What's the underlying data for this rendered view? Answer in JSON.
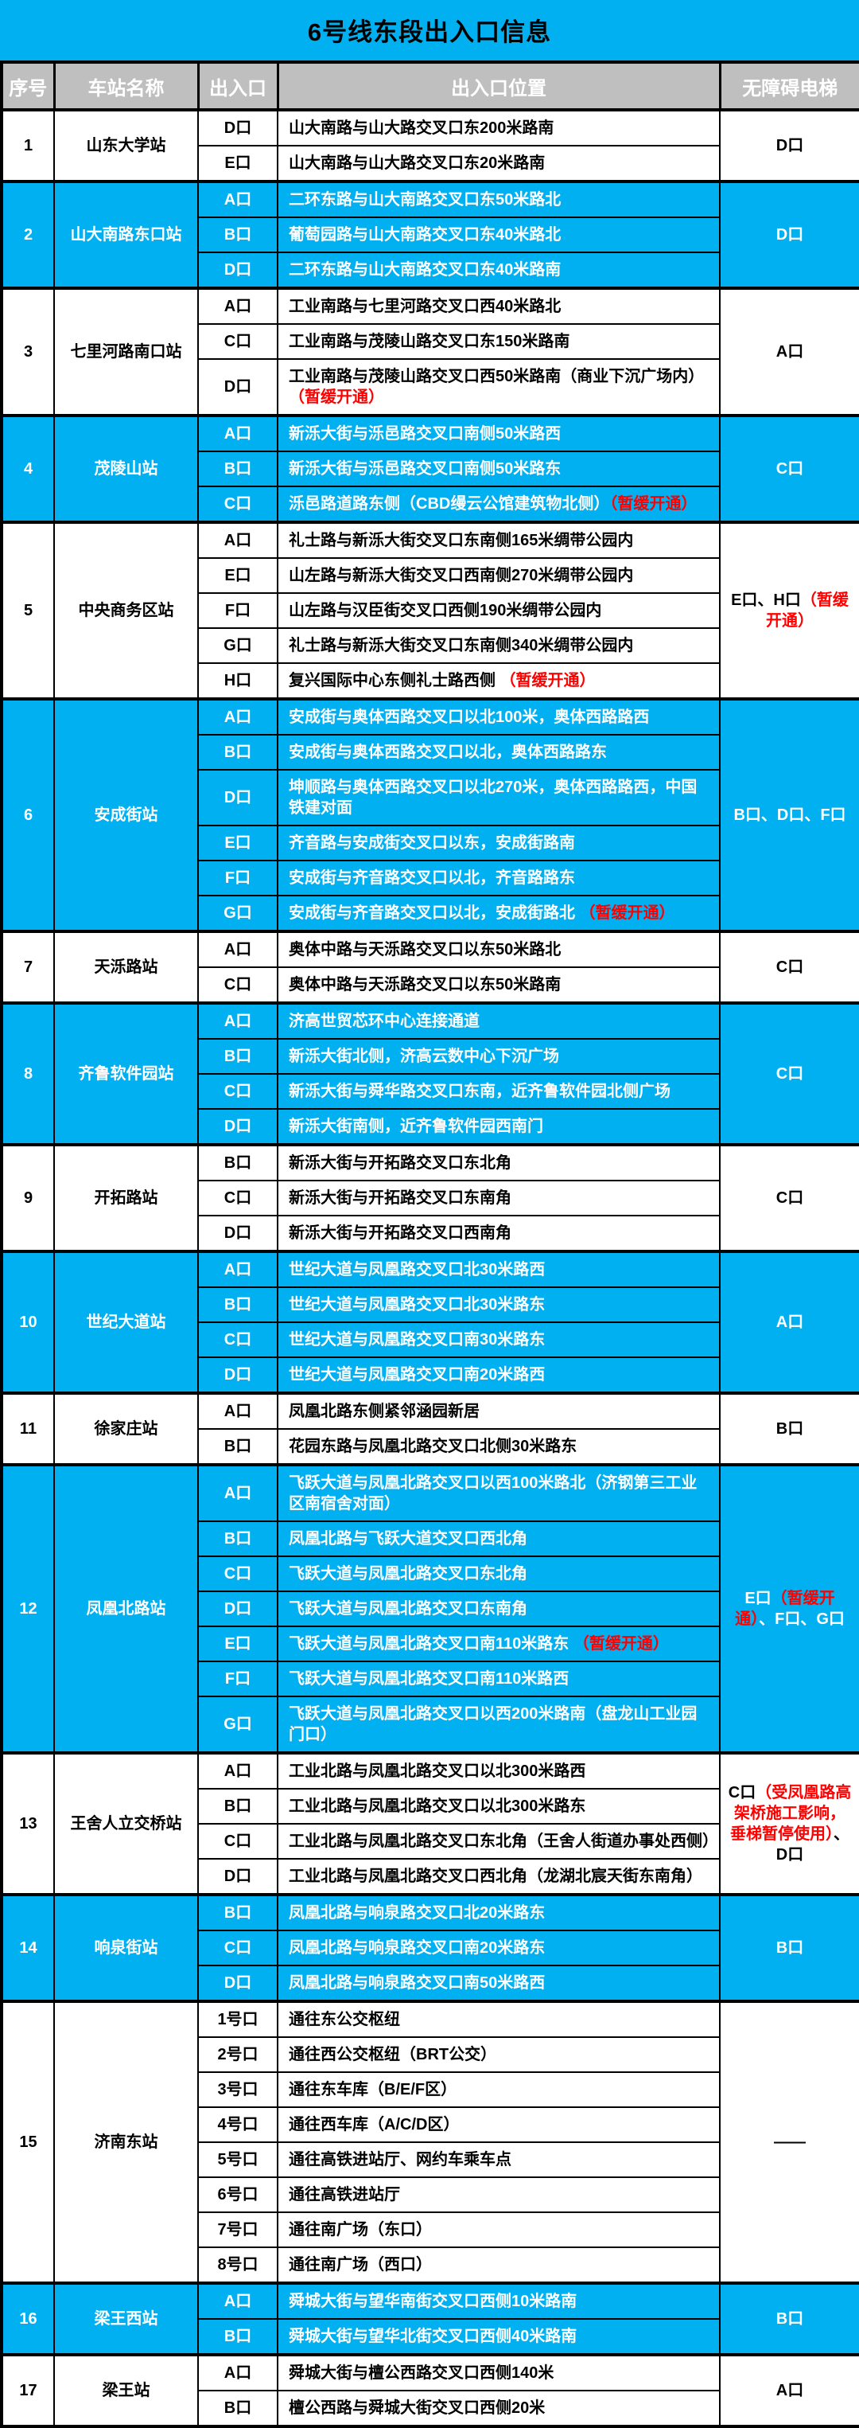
{
  "title": "6号线东段出入口信息",
  "headers": [
    "序号",
    "车站名称",
    "出入口",
    "出入口位置",
    "无障碍电梯"
  ],
  "colors": {
    "accent_cyan": "#00B0F0",
    "header_gray": "#BFBFBF",
    "notice_red": "#FF0000",
    "border_black": "#000000"
  },
  "stations": [
    {
      "no": "1",
      "name": "山东大学站",
      "blue": false,
      "exits": [
        {
          "label": "D口",
          "loc": [
            {
              "t": "山大南路与山大路交叉口东200米路南"
            }
          ]
        },
        {
          "label": "E口",
          "loc": [
            {
              "t": "山大南路与山大路交叉口东20米路南"
            }
          ]
        }
      ],
      "elevator": [
        {
          "t": "D口"
        }
      ]
    },
    {
      "no": "2",
      "name": "山大南路东口站",
      "blue": true,
      "exits": [
        {
          "label": "A口",
          "loc": [
            {
              "t": "二环东路与山大南路交叉口东50米路北"
            }
          ]
        },
        {
          "label": "B口",
          "loc": [
            {
              "t": "葡萄园路与山大南路交叉口东40米路北"
            }
          ]
        },
        {
          "label": "D口",
          "loc": [
            {
              "t": "二环东路与山大南路交叉口东40米路南"
            }
          ]
        }
      ],
      "elevator": [
        {
          "t": "D口"
        }
      ]
    },
    {
      "no": "3",
      "name": "七里河路南口站",
      "blue": false,
      "exits": [
        {
          "label": "A口",
          "loc": [
            {
              "t": "工业南路与七里河路交叉口西40米路北"
            }
          ]
        },
        {
          "label": "C口",
          "loc": [
            {
              "t": "工业南路与茂陵山路交叉口东150米路南"
            }
          ]
        },
        {
          "label": "D口",
          "loc": [
            {
              "t": "工业南路与茂陵山路交叉口西50米路南（商业下沉广场内）"
            },
            {
              "t": "（暂缓开通）",
              "red": true
            }
          ]
        }
      ],
      "elevator": [
        {
          "t": "A口"
        }
      ]
    },
    {
      "no": "4",
      "name": "茂陵山站",
      "blue": true,
      "exits": [
        {
          "label": "A口",
          "loc": [
            {
              "t": "新泺大街与泺邑路交叉口南侧50米路西"
            }
          ]
        },
        {
          "label": "B口",
          "loc": [
            {
              "t": "新泺大街与泺邑路交叉口南侧50米路东"
            }
          ]
        },
        {
          "label": "C口",
          "loc": [
            {
              "t": "泺邑路道路东侧（CBD缦云公馆建筑物北侧）"
            },
            {
              "t": "（暂缓开通）",
              "red": true
            }
          ]
        }
      ],
      "elevator": [
        {
          "t": "C口"
        }
      ]
    },
    {
      "no": "5",
      "name": "中央商务区站",
      "blue": false,
      "exits": [
        {
          "label": "A口",
          "loc": [
            {
              "t": "礼士路与新泺大街交叉口东南侧165米绸带公园内"
            }
          ]
        },
        {
          "label": "E口",
          "loc": [
            {
              "t": "山左路与新泺大街交叉口西南侧270米绸带公园内"
            }
          ]
        },
        {
          "label": "F口",
          "loc": [
            {
              "t": "山左路与汉臣街交叉口西侧190米绸带公园内"
            }
          ]
        },
        {
          "label": "G口",
          "loc": [
            {
              "t": "礼士路与新泺大街交叉口东南侧340米绸带公园内"
            }
          ]
        },
        {
          "label": "H口",
          "loc": [
            {
              "t": "复兴国际中心东侧礼士路西侧 "
            },
            {
              "t": "（暂缓开通）",
              "red": true
            }
          ]
        }
      ],
      "elevator": [
        {
          "t": "E口、H口"
        },
        {
          "t": "（暂缓开通）",
          "red": true
        }
      ]
    },
    {
      "no": "6",
      "name": "安成街站",
      "blue": true,
      "exits": [
        {
          "label": "A口",
          "loc": [
            {
              "t": "安成街与奥体西路交叉口以北100米，奥体西路路西"
            }
          ]
        },
        {
          "label": "B口",
          "loc": [
            {
              "t": "安成街与奥体西路交叉口以北，奥体西路路东"
            }
          ]
        },
        {
          "label": "D口",
          "loc": [
            {
              "t": "坤顺路与奥体西路交叉口以北270米，奥体西路路西，中国铁建对面"
            }
          ]
        },
        {
          "label": "E口",
          "loc": [
            {
              "t": "齐音路与安成街交叉口以东，安成街路南"
            }
          ]
        },
        {
          "label": "F口",
          "loc": [
            {
              "t": "安成街与齐音路交叉口以北，齐音路路东"
            }
          ]
        },
        {
          "label": "G口",
          "loc": [
            {
              "t": "安成街与齐音路交叉口以北，安成街路北 "
            },
            {
              "t": "（暂缓开通）",
              "red": true
            }
          ]
        }
      ],
      "elevator": [
        {
          "t": "B口、D口、F口"
        }
      ]
    },
    {
      "no": "7",
      "name": "天泺路站",
      "blue": false,
      "exits": [
        {
          "label": "A口",
          "loc": [
            {
              "t": "奥体中路与天泺路交叉口以东50米路北"
            }
          ]
        },
        {
          "label": "C口",
          "loc": [
            {
              "t": "奥体中路与天泺路交叉口以东50米路南"
            }
          ]
        }
      ],
      "elevator": [
        {
          "t": "C口"
        }
      ]
    },
    {
      "no": "8",
      "name": "齐鲁软件园站",
      "blue": true,
      "exits": [
        {
          "label": "A口",
          "loc": [
            {
              "t": "济高世贸芯环中心连接通道"
            }
          ]
        },
        {
          "label": "B口",
          "loc": [
            {
              "t": "新泺大街北侧，济高云数中心下沉广场"
            }
          ]
        },
        {
          "label": "C口",
          "loc": [
            {
              "t": "新泺大街与舜华路交叉口东南，近齐鲁软件园北侧广场"
            }
          ]
        },
        {
          "label": "D口",
          "loc": [
            {
              "t": "新泺大街南侧，近齐鲁软件园西南门"
            }
          ]
        }
      ],
      "elevator": [
        {
          "t": "C口"
        }
      ]
    },
    {
      "no": "9",
      "name": "开拓路站",
      "blue": false,
      "exits": [
        {
          "label": "B口",
          "loc": [
            {
              "t": "新泺大街与开拓路交叉口东北角"
            }
          ]
        },
        {
          "label": "C口",
          "loc": [
            {
              "t": "新泺大街与开拓路交叉口东南角"
            }
          ]
        },
        {
          "label": "D口",
          "loc": [
            {
              "t": "新泺大街与开拓路交叉口西南角"
            }
          ]
        }
      ],
      "elevator": [
        {
          "t": "C口"
        }
      ]
    },
    {
      "no": "10",
      "name": "世纪大道站",
      "blue": true,
      "exits": [
        {
          "label": "A口",
          "loc": [
            {
              "t": "世纪大道与凤凰路交叉口北30米路西"
            }
          ]
        },
        {
          "label": "B口",
          "loc": [
            {
              "t": "世纪大道与凤凰路交叉口北30米路东"
            }
          ]
        },
        {
          "label": "C口",
          "loc": [
            {
              "t": "世纪大道与凤凰路交叉口南30米路东"
            }
          ]
        },
        {
          "label": "D口",
          "loc": [
            {
              "t": "世纪大道与凤凰路交叉口南20米路西"
            }
          ]
        }
      ],
      "elevator": [
        {
          "t": "A口"
        }
      ]
    },
    {
      "no": "11",
      "name": "徐家庄站",
      "blue": false,
      "exits": [
        {
          "label": "A口",
          "loc": [
            {
              "t": "凤凰北路东侧紧邻涵园新居"
            }
          ]
        },
        {
          "label": "B口",
          "loc": [
            {
              "t": "花园东路与凤凰北路交叉口北侧30米路东"
            }
          ]
        }
      ],
      "elevator": [
        {
          "t": "B口"
        }
      ]
    },
    {
      "no": "12",
      "name": "凤凰北路站",
      "blue": true,
      "exits": [
        {
          "label": "A口",
          "loc": [
            {
              "t": "飞跃大道与凤凰北路交叉口以西100米路北（济钢第三工业区南宿舍对面）"
            }
          ]
        },
        {
          "label": "B口",
          "loc": [
            {
              "t": "凤凰北路与飞跃大道交叉口西北角"
            }
          ]
        },
        {
          "label": "C口",
          "loc": [
            {
              "t": "飞跃大道与凤凰北路交叉口东北角"
            }
          ]
        },
        {
          "label": "D口",
          "loc": [
            {
              "t": "飞跃大道与凤凰北路交叉口东南角"
            }
          ]
        },
        {
          "label": "E口",
          "loc": [
            {
              "t": "飞跃大道与凤凰北路交叉口南110米路东 "
            },
            {
              "t": "（暂缓开通）",
              "red": true
            }
          ]
        },
        {
          "label": "F口",
          "loc": [
            {
              "t": "飞跃大道与凤凰北路交叉口南110米路西"
            }
          ]
        },
        {
          "label": "G口",
          "loc": [
            {
              "t": "飞跃大道与凤凰北路交叉口以西200米路南（盘龙山工业园门口）"
            }
          ]
        }
      ],
      "elevator": [
        {
          "t": "E口"
        },
        {
          "t": "（暂缓开通）",
          "red": true
        },
        {
          "t": "、F口、G口"
        }
      ]
    },
    {
      "no": "13",
      "name": "王舍人立交桥站",
      "blue": false,
      "exits": [
        {
          "label": "A口",
          "loc": [
            {
              "t": "工业北路与凤凰北路交叉口以北300米路西"
            }
          ]
        },
        {
          "label": "B口",
          "loc": [
            {
              "t": "工业北路与凤凰北路交叉口以北300米路东"
            }
          ]
        },
        {
          "label": "C口",
          "loc": [
            {
              "t": "工业北路与凤凰北路交叉口东北角（王舍人街道办事处西侧）"
            }
          ]
        },
        {
          "label": "D口",
          "loc": [
            {
              "t": "工业北路与凤凰北路交叉口西北角（龙湖北宸天街东南角）"
            }
          ]
        }
      ],
      "elevator": [
        {
          "t": "C口"
        },
        {
          "t": "（受凤凰路高架桥施工影响，垂梯暂停使用）",
          "red": true
        },
        {
          "t": "、D口"
        }
      ]
    },
    {
      "no": "14",
      "name": "响泉街站",
      "blue": true,
      "exits": [
        {
          "label": "B口",
          "loc": [
            {
              "t": "凤凰北路与响泉路交叉口北20米路东"
            }
          ]
        },
        {
          "label": "C口",
          "loc": [
            {
              "t": "凤凰北路与响泉路交叉口南20米路东"
            }
          ]
        },
        {
          "label": "D口",
          "loc": [
            {
              "t": "凤凰北路与响泉路交叉口南50米路西"
            }
          ]
        }
      ],
      "elevator": [
        {
          "t": "B口"
        }
      ]
    },
    {
      "no": "15",
      "name": "济南东站",
      "blue": false,
      "exits": [
        {
          "label": "1号口",
          "loc": [
            {
              "t": "通往东公交枢纽"
            }
          ]
        },
        {
          "label": "2号口",
          "loc": [
            {
              "t": "通往西公交枢纽（BRT公交）"
            }
          ]
        },
        {
          "label": "3号口",
          "loc": [
            {
              "t": "通往东车库（B/E/F区）"
            }
          ]
        },
        {
          "label": "4号口",
          "loc": [
            {
              "t": "通往西车库（A/C/D区）"
            }
          ]
        },
        {
          "label": "5号口",
          "loc": [
            {
              "t": "通往高铁进站厅、网约车乘车点"
            }
          ]
        },
        {
          "label": "6号口",
          "loc": [
            {
              "t": "通往高铁进站厅"
            }
          ]
        },
        {
          "label": "7号口",
          "loc": [
            {
              "t": "通往南广场（东口）"
            }
          ]
        },
        {
          "label": "8号口",
          "loc": [
            {
              "t": "通往南广场（西口）"
            }
          ]
        }
      ],
      "elevator": [
        {
          "t": "——"
        }
      ]
    },
    {
      "no": "16",
      "name": "梁王西站",
      "blue": true,
      "exits": [
        {
          "label": "A口",
          "loc": [
            {
              "t": "舜城大街与望华南街交叉口西侧10米路南"
            }
          ]
        },
        {
          "label": "B口",
          "loc": [
            {
              "t": "舜城大街与望华北街交叉口西侧40米路南"
            }
          ]
        }
      ],
      "elevator": [
        {
          "t": "B口"
        }
      ]
    },
    {
      "no": "17",
      "name": "梁王站",
      "blue": false,
      "exits": [
        {
          "label": "A口",
          "loc": [
            {
              "t": "舜城大街与檀公西路交叉口西侧140米"
            }
          ]
        },
        {
          "label": "B口",
          "loc": [
            {
              "t": "檀公西路与舜城大街交叉口西侧20米"
            }
          ]
        }
      ],
      "elevator": [
        {
          "t": "A口"
        }
      ]
    }
  ]
}
